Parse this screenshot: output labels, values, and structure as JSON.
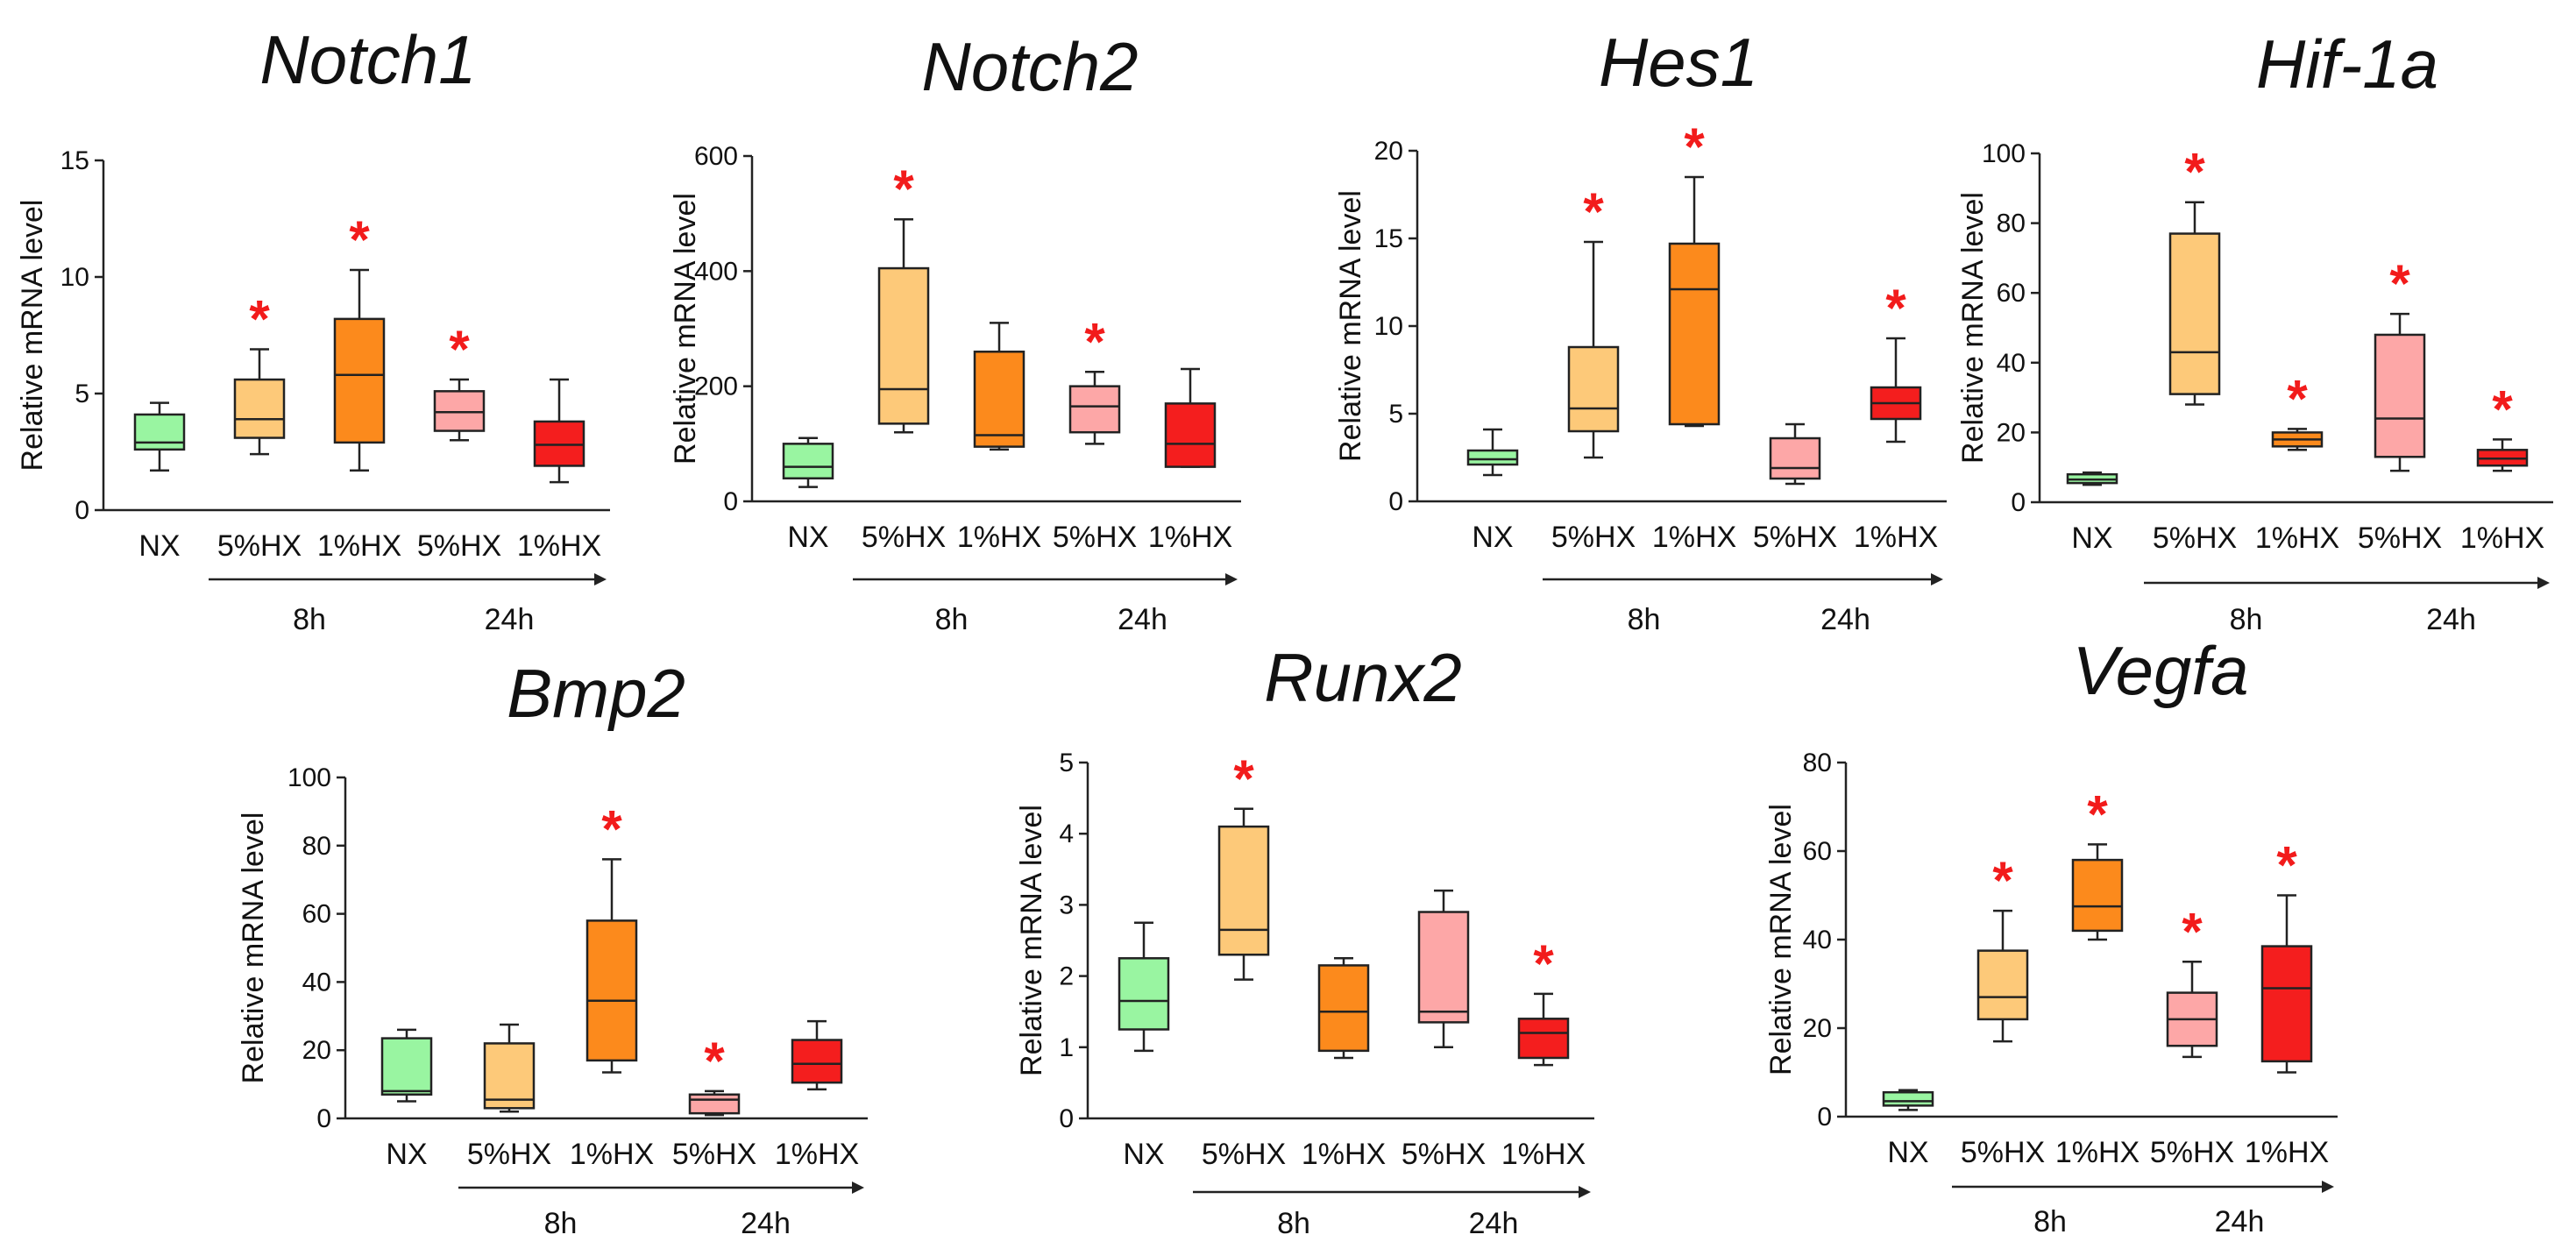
{
  "chart_data": [
    {
      "type": "box",
      "title": "Notch1",
      "ylabel": "Relative mRNA level",
      "ylim": [
        0,
        15
      ],
      "yticks": [
        0,
        5,
        10,
        15
      ],
      "yticklabels": [
        "0",
        "5",
        "10",
        "15"
      ],
      "categories": [
        "NX",
        "5%HX",
        "1%HX",
        "5%HX",
        "1%HX"
      ],
      "time_labels": [
        "8h",
        "24h"
      ],
      "boxes": [
        {
          "min": 1.7,
          "q1": 2.6,
          "median": 2.9,
          "q3": 4.1,
          "max": 4.6,
          "significant": false
        },
        {
          "min": 2.4,
          "q1": 3.1,
          "median": 3.9,
          "q3": 5.6,
          "max": 6.9,
          "significant": true
        },
        {
          "min": 1.7,
          "q1": 2.9,
          "median": 5.8,
          "q3": 8.2,
          "max": 10.3,
          "significant": true
        },
        {
          "min": 3.0,
          "q1": 3.4,
          "median": 4.2,
          "q3": 5.1,
          "max": 5.6,
          "significant": true
        },
        {
          "min": 1.2,
          "q1": 1.9,
          "median": 2.8,
          "q3": 3.8,
          "max": 5.6,
          "significant": false
        }
      ],
      "significance_marker": "*"
    },
    {
      "type": "box",
      "title": "Notch2",
      "ylabel": "Relative mRNA level",
      "ylim": [
        0,
        600
      ],
      "yticks": [
        0,
        200,
        400,
        600
      ],
      "yticklabels": [
        "0",
        "200",
        "400",
        "600"
      ],
      "categories": [
        "NX",
        "5%HX",
        "1%HX",
        "5%HX",
        "1%HX"
      ],
      "time_labels": [
        "8h",
        "24h"
      ],
      "boxes": [
        {
          "min": 25,
          "q1": 40,
          "median": 60,
          "q3": 100,
          "max": 110,
          "significant": false
        },
        {
          "min": 120,
          "q1": 135,
          "median": 195,
          "q3": 405,
          "max": 490,
          "significant": true
        },
        {
          "min": 90,
          "q1": 95,
          "median": 115,
          "q3": 260,
          "max": 310,
          "significant": false
        },
        {
          "min": 100,
          "q1": 120,
          "median": 165,
          "q3": 200,
          "max": 225,
          "significant": true
        },
        {
          "min": 60,
          "q1": 60,
          "median": 100,
          "q3": 170,
          "max": 230,
          "significant": false
        }
      ],
      "significance_marker": "*"
    },
    {
      "type": "box",
      "title": "Hes1",
      "ylabel": "Relative mRNA level",
      "ylim": [
        0,
        20
      ],
      "yticks": [
        0,
        5,
        10,
        15,
        20
      ],
      "yticklabels": [
        "0",
        "5",
        "10",
        "15",
        "20"
      ],
      "categories": [
        "NX",
        "5%HX",
        "1%HX",
        "5%HX",
        "1%HX"
      ],
      "time_labels": [
        "8h",
        "24h"
      ],
      "boxes": [
        {
          "min": 1.5,
          "q1": 2.1,
          "median": 2.4,
          "q3": 2.9,
          "max": 4.1,
          "significant": false
        },
        {
          "min": 2.5,
          "q1": 4.0,
          "median": 5.3,
          "q3": 8.8,
          "max": 14.8,
          "significant": true
        },
        {
          "min": 4.3,
          "q1": 4.4,
          "median": 12.1,
          "q3": 14.7,
          "max": 18.5,
          "significant": true
        },
        {
          "min": 1.0,
          "q1": 1.3,
          "median": 1.9,
          "q3": 3.6,
          "max": 4.4,
          "significant": false
        },
        {
          "min": 3.4,
          "q1": 4.7,
          "median": 5.6,
          "q3": 6.5,
          "max": 9.3,
          "significant": true
        }
      ],
      "significance_marker": "*"
    },
    {
      "type": "box",
      "title": "Hif-1a",
      "ylabel": "Relative mRNA level",
      "ylim": [
        0,
        100
      ],
      "yticks": [
        0,
        20,
        40,
        60,
        80,
        100
      ],
      "yticklabels": [
        "0",
        "20",
        "40",
        "60",
        "80",
        "100"
      ],
      "categories": [
        "NX",
        "5%HX",
        "1%HX",
        "5%HX",
        "1%HX"
      ],
      "time_labels": [
        "8h",
        "24h"
      ],
      "boxes": [
        {
          "min": 5,
          "q1": 5.5,
          "median": 6.5,
          "q3": 8,
          "max": 8.5,
          "significant": false
        },
        {
          "min": 28,
          "q1": 31,
          "median": 43,
          "q3": 77,
          "max": 86,
          "significant": true
        },
        {
          "min": 15,
          "q1": 16,
          "median": 18,
          "q3": 20,
          "max": 21,
          "significant": true
        },
        {
          "min": 9,
          "q1": 13,
          "median": 24,
          "q3": 48,
          "max": 54,
          "significant": true
        },
        {
          "min": 9,
          "q1": 10.5,
          "median": 12.5,
          "q3": 15,
          "max": 18,
          "significant": true
        }
      ],
      "significance_marker": "*"
    },
    {
      "type": "box",
      "title": "Bmp2",
      "ylabel": "Relative mRNA level",
      "ylim": [
        0,
        100
      ],
      "yticks": [
        0,
        20,
        40,
        60,
        80,
        100
      ],
      "yticklabels": [
        "0",
        "20",
        "40",
        "60",
        "80",
        "100"
      ],
      "categories": [
        "NX",
        "5%HX",
        "1%HX",
        "5%HX",
        "1%HX"
      ],
      "time_labels": [
        "8h",
        "24h"
      ],
      "boxes": [
        {
          "min": 5,
          "q1": 7,
          "median": 8,
          "q3": 23.5,
          "max": 26,
          "significant": false
        },
        {
          "min": 2,
          "q1": 3,
          "median": 5.5,
          "q3": 22,
          "max": 27.5,
          "significant": false
        },
        {
          "min": 13.5,
          "q1": 17,
          "median": 34.5,
          "q3": 58,
          "max": 76,
          "significant": true
        },
        {
          "min": 1,
          "q1": 1.5,
          "median": 5.5,
          "q3": 7,
          "max": 8,
          "significant": true
        },
        {
          "min": 8.5,
          "q1": 10.5,
          "median": 16,
          "q3": 23,
          "max": 28.5,
          "significant": false
        }
      ],
      "significance_marker": "*"
    },
    {
      "type": "box",
      "title": "Runx2",
      "ylabel": "Relative mRNA level",
      "ylim": [
        0,
        5
      ],
      "yticks": [
        0,
        1,
        2,
        3,
        4,
        5
      ],
      "yticklabels": [
        "0",
        "1",
        "2",
        "3",
        "4",
        "5"
      ],
      "categories": [
        "NX",
        "5%HX",
        "1%HX",
        "5%HX",
        "1%HX"
      ],
      "time_labels": [
        "8h",
        "24h"
      ],
      "boxes": [
        {
          "min": 0.95,
          "q1": 1.25,
          "median": 1.65,
          "q3": 2.25,
          "max": 2.75,
          "significant": false
        },
        {
          "min": 1.95,
          "q1": 2.3,
          "median": 2.65,
          "q3": 4.1,
          "max": 4.35,
          "significant": true
        },
        {
          "min": 0.85,
          "q1": 0.95,
          "median": 1.5,
          "q3": 2.15,
          "max": 2.25,
          "significant": false
        },
        {
          "min": 1.0,
          "q1": 1.35,
          "median": 1.5,
          "q3": 2.9,
          "max": 3.2,
          "significant": false
        },
        {
          "min": 0.75,
          "q1": 0.85,
          "median": 1.2,
          "q3": 1.4,
          "max": 1.75,
          "significant": true
        }
      ],
      "significance_marker": "*"
    },
    {
      "type": "box",
      "title": "Vegfa",
      "ylabel": "Relative mRNA level",
      "ylim": [
        0,
        80
      ],
      "yticks": [
        0,
        20,
        40,
        60,
        80
      ],
      "yticklabels": [
        "0",
        "20",
        "40",
        "60",
        "80"
      ],
      "categories": [
        "NX",
        "5%HX",
        "1%HX",
        "5%HX",
        "1%HX"
      ],
      "time_labels": [
        "8h",
        "24h"
      ],
      "boxes": [
        {
          "min": 1.5,
          "q1": 2.5,
          "median": 3.5,
          "q3": 5.5,
          "max": 6,
          "significant": false
        },
        {
          "min": 17,
          "q1": 22,
          "median": 27,
          "q3": 37.5,
          "max": 46.5,
          "significant": true
        },
        {
          "min": 40,
          "q1": 42,
          "median": 47.5,
          "q3": 58,
          "max": 61.5,
          "significant": true
        },
        {
          "min": 13.5,
          "q1": 16,
          "median": 22,
          "q3": 28,
          "max": 35,
          "significant": true
        },
        {
          "min": 10,
          "q1": 12.5,
          "median": 29,
          "q3": 38.5,
          "max": 50,
          "significant": true
        }
      ],
      "significance_marker": "*"
    }
  ],
  "colors": {
    "box_fills": [
      "#99f5a1",
      "#fdc979",
      "#fc8a1c",
      "#fda7a7",
      "#f41e1e"
    ],
    "significance": "#f21b1b",
    "axis": "#222222",
    "text": "#111111",
    "background": "#ffffff"
  }
}
